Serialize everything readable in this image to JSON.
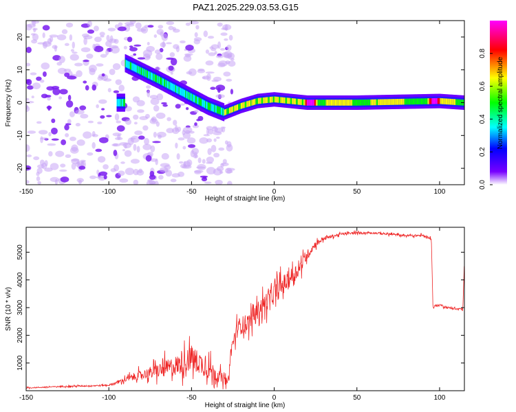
{
  "title": "PAZ1.2025.229.03.53.G15",
  "chart_data": [
    {
      "type": "heatmap",
      "xlabel": "Height of straight line (km)",
      "ylabel": "Frequency (Hz)",
      "xlim": [
        -150,
        115
      ],
      "ylim": [
        -25,
        25
      ],
      "xticks": [
        -150,
        -100,
        -50,
        0,
        50,
        100
      ],
      "yticks": [
        -20,
        -10,
        0,
        10,
        20
      ],
      "colorbar": {
        "label": "Normalized spectral amplitude",
        "range": [
          0,
          1
        ],
        "ticks": [
          "0.0",
          "0.2",
          "0.4",
          "0.6",
          "0.8"
        ],
        "tick_values": [
          0,
          0.2,
          0.4,
          0.6,
          0.8
        ],
        "colormap": [
          "#ffffff",
          "#7700ff",
          "#0000ff",
          "#00ffff",
          "#00ff00",
          "#ffff00",
          "#ff0000",
          "#ff00ff"
        ]
      },
      "ridge": {
        "description_points": [
          {
            "x": -90,
            "y": 12
          },
          {
            "x": -70,
            "y": 7
          },
          {
            "x": -55,
            "y": 3
          },
          {
            "x": -40,
            "y": -1
          },
          {
            "x": -30,
            "y": -3
          },
          {
            "x": -20,
            "y": -1
          },
          {
            "x": -10,
            "y": 0.5
          },
          {
            "x": 0,
            "y": 1
          },
          {
            "x": 10,
            "y": 0.5
          },
          {
            "x": 20,
            "y": 0
          },
          {
            "x": 50,
            "y": 0
          },
          {
            "x": 100,
            "y": 0.5
          },
          {
            "x": 115,
            "y": 0
          }
        ],
        "peak_regions": [
          {
            "x": 22,
            "amplitude": 1.0
          },
          {
            "x": 97,
            "amplitude": 0.95
          },
          {
            "x": 60,
            "amplitude": 0.55
          }
        ]
      }
    },
    {
      "type": "line",
      "xlabel": "Height of straight line (km)",
      "ylabel": "SNR (10 * v/v)",
      "xlim": [
        -150,
        115
      ],
      "ylim": [
        0,
        5900
      ],
      "xticks": [
        -150,
        -100,
        -50,
        0,
        50,
        100
      ],
      "yticks": [
        1000,
        2000,
        3000,
        4000,
        5000
      ],
      "color": "#ee2222",
      "series": [
        {
          "x": [
            -150,
            -130,
            -110,
            -100,
            -95,
            -85,
            -75,
            -65,
            -55,
            -50,
            -45,
            -40,
            -35,
            -28,
            -26,
            -22,
            -15,
            -10,
            -5,
            0,
            5,
            10,
            15,
            20,
            25,
            30,
            40,
            50,
            60,
            70,
            80,
            90,
            95,
            96,
            97,
            100,
            105,
            110,
            114,
            115
          ],
          "y": [
            100,
            150,
            180,
            200,
            300,
            500,
            650,
            800,
            1000,
            1200,
            1000,
            800,
            600,
            300,
            1500,
            2300,
            2500,
            2900,
            3200,
            3500,
            3800,
            4100,
            4400,
            4900,
            5300,
            5500,
            5650,
            5700,
            5700,
            5650,
            5600,
            5600,
            5500,
            3000,
            3050,
            3100,
            3000,
            2950,
            2950,
            4500
          ],
          "noise": [
            40,
            50,
            60,
            60,
            120,
            300,
            450,
            700,
            900,
            1000,
            900,
            800,
            600,
            250,
            600,
            700,
            700,
            700,
            800,
            800,
            800,
            700,
            600,
            400,
            250,
            150,
            100,
            90,
            90,
            90,
            90,
            90,
            90,
            100,
            100,
            100,
            80,
            80,
            80,
            500
          ]
        }
      ]
    }
  ]
}
